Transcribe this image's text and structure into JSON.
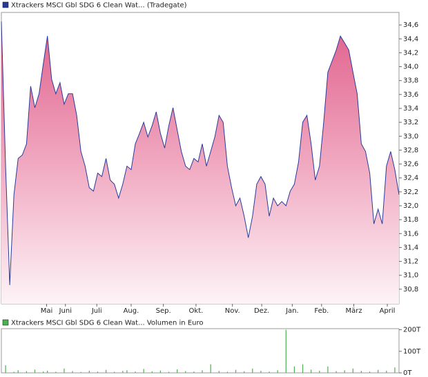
{
  "chart_data": [
    {
      "type": "area",
      "series": [
        {
          "name": "Xtrackers MSCI Gbl SDG 6 Clean Wat... (Tradegate)",
          "color": "#2a3a9a",
          "values": [
            34.65,
            32.57,
            30.86,
            32.16,
            32.68,
            32.73,
            32.89,
            33.72,
            33.41,
            33.61,
            34.03,
            34.44,
            33.82,
            33.61,
            33.77,
            33.46,
            33.61,
            33.61,
            33.3,
            32.78,
            32.57,
            32.26,
            32.21,
            32.47,
            32.42,
            32.68,
            32.37,
            32.31,
            32.11,
            32.31,
            32.57,
            32.52,
            32.89,
            33.04,
            33.2,
            32.99,
            33.15,
            33.35,
            33.04,
            32.83,
            33.15,
            33.41,
            33.09,
            32.78,
            32.57,
            32.52,
            32.68,
            32.63,
            32.89,
            32.57,
            32.78,
            32.99,
            33.3,
            33.2,
            32.57,
            32.26,
            32.0,
            32.11,
            31.85,
            31.54,
            31.85,
            32.31,
            32.42,
            32.31,
            31.85,
            32.11,
            32.0,
            32.06,
            32.0,
            32.21,
            32.31,
            32.63,
            33.2,
            33.3,
            32.89,
            32.37,
            32.57,
            33.2,
            33.92,
            34.08,
            34.24,
            34.44,
            34.34,
            34.24,
            33.92,
            33.61,
            32.89,
            32.78,
            32.47,
            31.74,
            31.95,
            31.74,
            32.57,
            32.78,
            32.52,
            32.16
          ]
        }
      ],
      "xlim": [
        0,
        95
      ],
      "xticks": [
        {
          "value": 10.8,
          "label": "Mai"
        },
        {
          "value": 15.3,
          "label": "Juni"
        },
        {
          "value": 22.8,
          "label": "Juli"
        },
        {
          "value": 31,
          "label": "Aug."
        },
        {
          "value": 38.7,
          "label": "Sep."
        },
        {
          "value": 46.5,
          "label": "Okt."
        },
        {
          "value": 55.2,
          "label": "Nov."
        },
        {
          "value": 62.2,
          "label": "Dez."
        },
        {
          "value": 69.5,
          "label": "Jan."
        },
        {
          "value": 76.5,
          "label": "Feb."
        },
        {
          "value": 84.2,
          "label": "März"
        },
        {
          "value": 92.2,
          "label": "April"
        }
      ],
      "ylim": [
        30.59,
        34.78
      ],
      "yticks": [
        {
          "value": 30.8,
          "label": "30,8"
        },
        {
          "value": 31.0,
          "label": "31,0"
        },
        {
          "value": 31.2,
          "label": "31,2"
        },
        {
          "value": 31.4,
          "label": "31,4"
        },
        {
          "value": 31.6,
          "label": "31,6"
        },
        {
          "value": 31.8,
          "label": "31,8"
        },
        {
          "value": 32.0,
          "label": "32,0"
        },
        {
          "value": 32.2,
          "label": "32,2"
        },
        {
          "value": 32.4,
          "label": "32,4"
        },
        {
          "value": 32.6,
          "label": "32,6"
        },
        {
          "value": 32.8,
          "label": "32,8"
        },
        {
          "value": 33.0,
          "label": "33,0"
        },
        {
          "value": 33.2,
          "label": "33,2"
        },
        {
          "value": 33.4,
          "label": "33,4"
        },
        {
          "value": 33.6,
          "label": "33,6"
        },
        {
          "value": 33.8,
          "label": "33,8"
        },
        {
          "value": 34.0,
          "label": "34,0"
        },
        {
          "value": 34.2,
          "label": "34,2"
        },
        {
          "value": 34.4,
          "label": "34,4"
        },
        {
          "value": 34.6,
          "label": "34,6"
        }
      ]
    },
    {
      "type": "bar",
      "series": [
        {
          "name": "Xtrackers MSCI Gbl SDG 6 Clean Wat... Volumen in Euro",
          "color": "#4caf50",
          "values": [
            0,
            35000,
            0,
            5000,
            12000,
            0,
            8000,
            0,
            15000,
            0,
            6000,
            10000,
            0,
            5000,
            0,
            20000,
            0,
            8000,
            0,
            4000,
            0,
            10000,
            0,
            6000,
            0,
            14000,
            0,
            5000,
            0,
            9000,
            12000,
            0,
            6000,
            0,
            18000,
            0,
            7000,
            0,
            11000,
            0,
            5000,
            0,
            16000,
            0,
            8000,
            0,
            6000,
            0,
            12000,
            0,
            40000,
            0,
            9000,
            0,
            5000,
            0,
            14000,
            0,
            7000,
            0,
            20000,
            0,
            10000,
            0,
            6000,
            0,
            12000,
            0,
            200000,
            0,
            30000,
            0,
            40000,
            0,
            15000,
            0,
            10000,
            0,
            30000,
            0,
            8000,
            0,
            12000,
            0,
            20000,
            0,
            9000,
            0,
            6000,
            0,
            14000,
            0,
            10000,
            0,
            25000,
            0
          ]
        }
      ],
      "xlim": [
        0,
        95
      ],
      "ylim": [
        0,
        205000
      ],
      "yticks": [
        {
          "value": 0,
          "label": "0T"
        },
        {
          "value": 100000,
          "label": "100T"
        },
        {
          "value": 200000,
          "label": "200T"
        }
      ]
    }
  ]
}
